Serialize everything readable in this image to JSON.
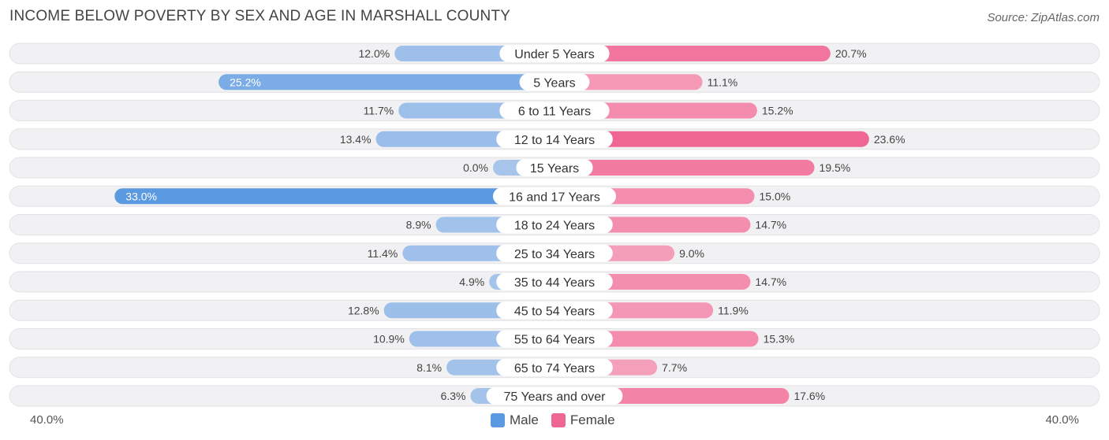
{
  "title": "INCOME BELOW POVERTY BY SEX AND AGE IN MARSHALL COUNTY",
  "source": "Source: ZipAtlas.com",
  "axis": {
    "left_label": "40.0%",
    "right_label": "40.0%"
  },
  "legend": {
    "male": "Male",
    "female": "Female"
  },
  "colors": {
    "male_light": "#a7c5eb",
    "male_dark": "#5b9ae0",
    "female_light": "#f6a7c0",
    "female_dark": "#f06693",
    "row_bg": "#f1f1f3"
  },
  "chart_data": {
    "type": "bar",
    "orientation": "horizontal-diverging",
    "title": "INCOME BELOW POVERTY BY SEX AND AGE IN MARSHALL COUNTY",
    "xlim": [
      -40,
      40
    ],
    "categories": [
      "Under 5 Years",
      "5 Years",
      "6 to 11 Years",
      "12 to 14 Years",
      "15 Years",
      "16 and 17 Years",
      "18 to 24 Years",
      "25 to 34 Years",
      "35 to 44 Years",
      "45 to 54 Years",
      "55 to 64 Years",
      "65 to 74 Years",
      "75 Years and over"
    ],
    "series": [
      {
        "name": "Male",
        "values": [
          12.0,
          25.2,
          11.7,
          13.4,
          0.0,
          33.0,
          8.9,
          11.4,
          4.9,
          12.8,
          10.9,
          8.1,
          6.3
        ],
        "labels": [
          "12.0%",
          "25.2%",
          "11.7%",
          "13.4%",
          "0.0%",
          "33.0%",
          "8.9%",
          "11.4%",
          "4.9%",
          "12.8%",
          "10.9%",
          "8.1%",
          "6.3%"
        ]
      },
      {
        "name": "Female",
        "values": [
          20.7,
          11.1,
          15.2,
          23.6,
          19.5,
          15.0,
          14.7,
          9.0,
          14.7,
          11.9,
          15.3,
          7.7,
          17.6
        ],
        "labels": [
          "20.7%",
          "11.1%",
          "15.2%",
          "23.6%",
          "19.5%",
          "15.0%",
          "14.7%",
          "9.0%",
          "14.7%",
          "11.9%",
          "15.3%",
          "7.7%",
          "17.6%"
        ]
      }
    ]
  }
}
